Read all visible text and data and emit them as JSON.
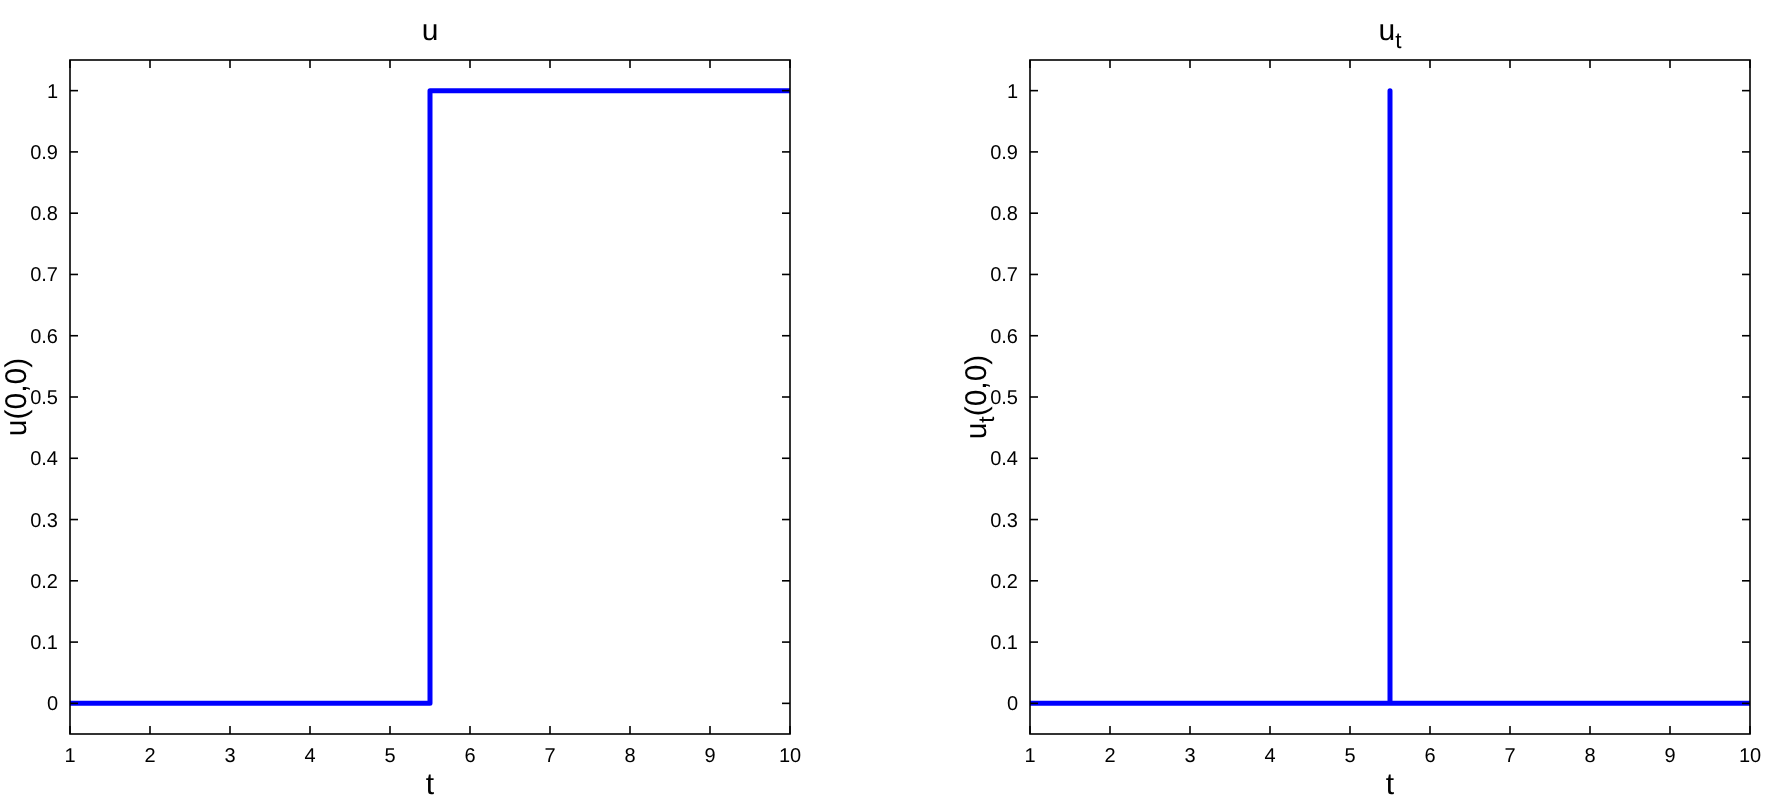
{
  "chart_data": [
    {
      "type": "line",
      "title": "u",
      "xlabel": "t",
      "ylabel": "u(0,0)",
      "xlim": [
        1,
        10
      ],
      "ylim": [
        -0.05,
        1.05
      ],
      "xticks": [
        1,
        2,
        3,
        4,
        5,
        6,
        7,
        8,
        9,
        10
      ],
      "yticks": [
        0,
        0.1,
        0.2,
        0.3,
        0.4,
        0.5,
        0.6,
        0.7,
        0.8,
        0.9,
        1
      ],
      "series": [
        {
          "color": "#0000ff",
          "x": [
            1,
            5.5,
            5.5,
            10
          ],
          "values": [
            0,
            0,
            1,
            1
          ]
        }
      ]
    },
    {
      "type": "line",
      "title": "u$_{t}$",
      "xlabel": "t",
      "ylabel": "u$_{t}$(0,0)",
      "xlim": [
        1,
        10
      ],
      "ylim": [
        -0.05,
        1.05
      ],
      "xticks": [
        1,
        2,
        3,
        4,
        5,
        6,
        7,
        8,
        9,
        10
      ],
      "yticks": [
        0,
        0.1,
        0.2,
        0.3,
        0.4,
        0.5,
        0.6,
        0.7,
        0.8,
        0.9,
        1
      ],
      "series": [
        {
          "color": "#0000ff",
          "x": [
            1,
            5.5,
            5.5,
            5.5,
            10
          ],
          "values": [
            0,
            0,
            1,
            0,
            0
          ]
        }
      ]
    }
  ]
}
